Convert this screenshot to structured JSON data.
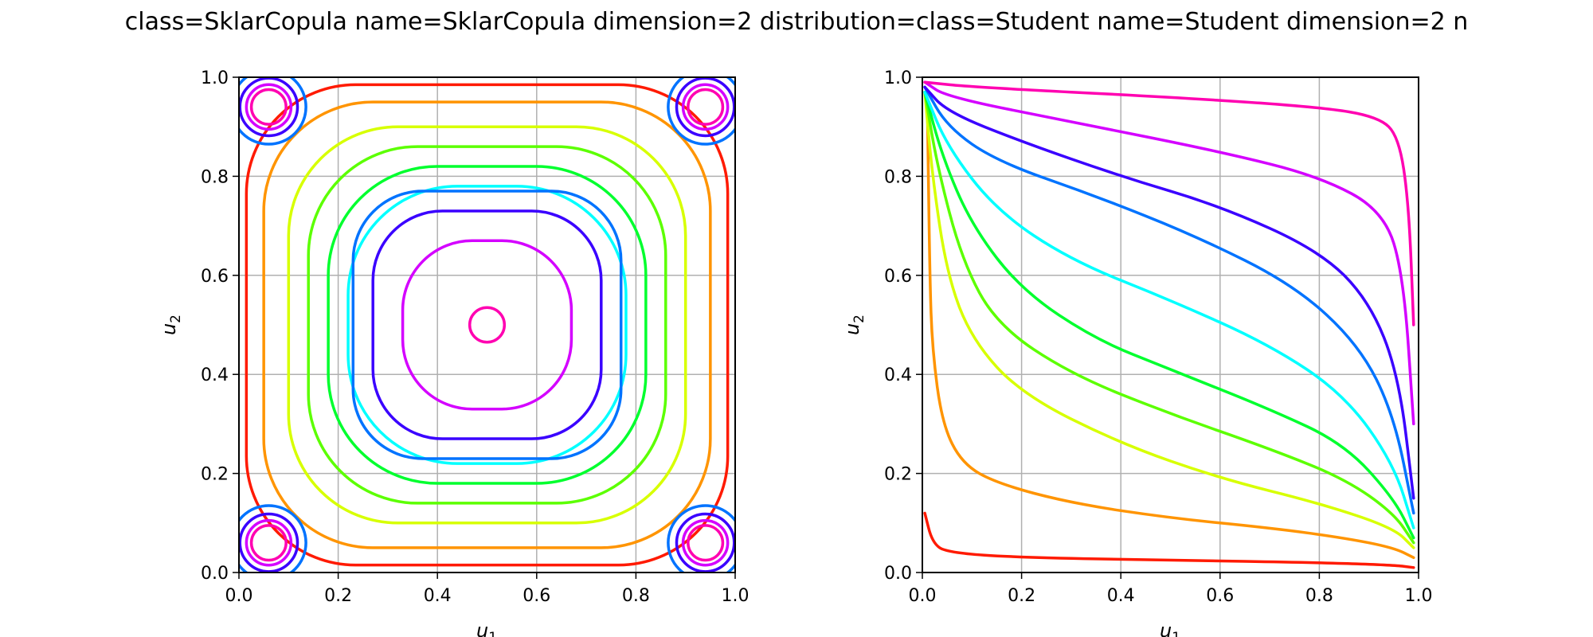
{
  "figure": {
    "title": "class=SklarCopula name=SklarCopula dimension=2 distribution=class=Student name=Student dimension=2 n"
  },
  "level_colors": [
    "#ff1a00",
    "#ff9400",
    "#d7ff00",
    "#5cff00",
    "#00ff2e",
    "#00ffff",
    "#0073ff",
    "#3a00ff",
    "#d400ff",
    "#ff00b1"
  ],
  "chart_data": [
    {
      "type": "contour",
      "subtype": "PDF contour lines",
      "xlabel_main": "u",
      "xlabel_sub": "1",
      "ylabel_main": "u",
      "ylabel_sub": "2",
      "xlim": [
        0.0,
        1.0
      ],
      "ylim": [
        0.0,
        1.0
      ],
      "xticks": [
        "0.0",
        "0.2",
        "0.4",
        "0.6",
        "0.8",
        "1.0"
      ],
      "yticks": [
        "0.0",
        "0.2",
        "0.4",
        "0.6",
        "0.8",
        "1.0"
      ],
      "grid": true,
      "levels": 10,
      "contour_inner_half_widths": [
        0.485,
        0.45,
        0.4,
        0.36,
        0.32,
        0.28,
        0.27,
        0.23,
        0.17,
        0.035
      ],
      "corner_loop_radii": [
        0.075,
        0.058,
        0.045,
        0.035
      ],
      "corner_loop_center_offset": 0.06
    },
    {
      "type": "contour",
      "subtype": "CDF contour lines",
      "xlabel_main": "u",
      "xlabel_sub": "1",
      "ylabel_main": "u",
      "ylabel_sub": "2",
      "xlim": [
        0.0,
        1.0
      ],
      "ylim": [
        0.0,
        1.0
      ],
      "xticks": [
        "0.0",
        "0.2",
        "0.4",
        "0.6",
        "0.8",
        "1.0"
      ],
      "yticks": [
        "0.0",
        "0.2",
        "0.4",
        "0.6",
        "0.8",
        "1.0"
      ],
      "grid": true,
      "levels": 10,
      "series": [
        {
          "values": [
            [
              0.005,
              0.12
            ],
            [
              0.02,
              0.06
            ],
            [
              0.05,
              0.04
            ],
            [
              0.2,
              0.03
            ],
            [
              0.5,
              0.025
            ],
            [
              0.8,
              0.02
            ],
            [
              0.95,
              0.015
            ],
            [
              0.99,
              0.01
            ]
          ]
        },
        {
          "values": [
            [
              0.01,
              0.95
            ],
            [
              0.015,
              0.6
            ],
            [
              0.02,
              0.45
            ],
            [
              0.04,
              0.3
            ],
            [
              0.08,
              0.22
            ],
            [
              0.15,
              0.18
            ],
            [
              0.3,
              0.14
            ],
            [
              0.5,
              0.11
            ],
            [
              0.7,
              0.09
            ],
            [
              0.85,
              0.07
            ],
            [
              0.95,
              0.05
            ],
            [
              0.99,
              0.03
            ]
          ]
        },
        {
          "values": [
            [
              0.005,
              0.97
            ],
            [
              0.02,
              0.8
            ],
            [
              0.05,
              0.6
            ],
            [
              0.1,
              0.47
            ],
            [
              0.2,
              0.36
            ],
            [
              0.4,
              0.26
            ],
            [
              0.6,
              0.19
            ],
            [
              0.8,
              0.14
            ],
            [
              0.95,
              0.09
            ],
            [
              0.99,
              0.05
            ]
          ]
        },
        {
          "values": [
            [
              0.005,
              0.97
            ],
            [
              0.03,
              0.82
            ],
            [
              0.08,
              0.63
            ],
            [
              0.15,
              0.5
            ],
            [
              0.3,
              0.4
            ],
            [
              0.5,
              0.32
            ],
            [
              0.7,
              0.25
            ],
            [
              0.85,
              0.19
            ],
            [
              0.95,
              0.12
            ],
            [
              0.99,
              0.06
            ]
          ]
        },
        {
          "values": [
            [
              0.005,
              0.97
            ],
            [
              0.04,
              0.84
            ],
            [
              0.1,
              0.7
            ],
            [
              0.2,
              0.57
            ],
            [
              0.35,
              0.47
            ],
            [
              0.5,
              0.41
            ],
            [
              0.7,
              0.33
            ],
            [
              0.85,
              0.26
            ],
            [
              0.95,
              0.15
            ],
            [
              0.99,
              0.07
            ]
          ]
        },
        {
          "values": [
            [
              0.005,
              0.97
            ],
            [
              0.05,
              0.86
            ],
            [
              0.15,
              0.73
            ],
            [
              0.3,
              0.63
            ],
            [
              0.5,
              0.55
            ],
            [
              0.7,
              0.46
            ],
            [
              0.85,
              0.36
            ],
            [
              0.95,
              0.22
            ],
            [
              0.99,
              0.09
            ]
          ]
        },
        {
          "values": [
            [
              0.005,
              0.98
            ],
            [
              0.05,
              0.9
            ],
            [
              0.15,
              0.83
            ],
            [
              0.35,
              0.76
            ],
            [
              0.55,
              0.68
            ],
            [
              0.75,
              0.58
            ],
            [
              0.88,
              0.46
            ],
            [
              0.95,
              0.32
            ],
            [
              0.99,
              0.12
            ]
          ]
        },
        {
          "values": [
            [
              0.005,
              0.98
            ],
            [
              0.05,
              0.93
            ],
            [
              0.2,
              0.87
            ],
            [
              0.4,
              0.8
            ],
            [
              0.6,
              0.74
            ],
            [
              0.8,
              0.65
            ],
            [
              0.9,
              0.55
            ],
            [
              0.96,
              0.4
            ],
            [
              0.99,
              0.15
            ]
          ]
        },
        {
          "values": [
            [
              0.005,
              0.99
            ],
            [
              0.05,
              0.96
            ],
            [
              0.3,
              0.91
            ],
            [
              0.6,
              0.85
            ],
            [
              0.8,
              0.8
            ],
            [
              0.93,
              0.73
            ],
            [
              0.97,
              0.6
            ],
            [
              0.99,
              0.3
            ]
          ]
        },
        {
          "values": [
            [
              0.005,
              0.99
            ],
            [
              0.1,
              0.98
            ],
            [
              0.5,
              0.96
            ],
            [
              0.8,
              0.94
            ],
            [
              0.92,
              0.92
            ],
            [
              0.96,
              0.88
            ],
            [
              0.98,
              0.75
            ],
            [
              0.99,
              0.5
            ]
          ]
        }
      ]
    }
  ]
}
